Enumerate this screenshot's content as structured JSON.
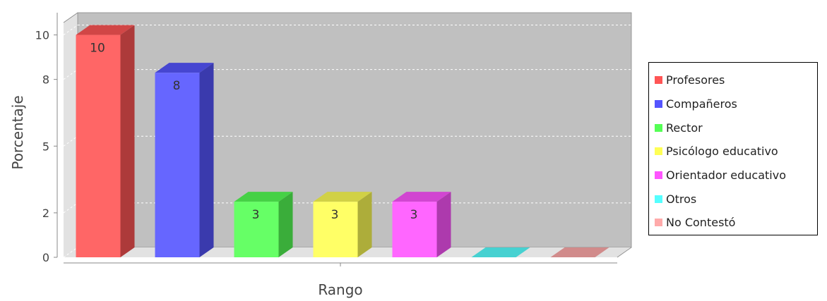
{
  "chart_data": {
    "type": "bar",
    "title": "",
    "xlabel": "Rango",
    "ylabel": "Porcentaje",
    "ylim": [
      0,
      11
    ],
    "yticks": [
      0,
      2,
      5,
      8,
      10
    ],
    "ytick_labels": [
      "0",
      "2",
      "5",
      "8",
      "10"
    ],
    "grid": true,
    "legend_position": "right",
    "categories": [
      "Profesores",
      "Compañeros",
      "Rector",
      "Psicólogo educativo",
      "Orientador educativo",
      "Otros",
      "No Contestó"
    ],
    "values": [
      10,
      8.3,
      2.5,
      2.5,
      2.5,
      0,
      0
    ],
    "data_labels": [
      "10",
      "8",
      "3",
      "3",
      "3",
      "",
      ""
    ],
    "colors": [
      "#ff5555",
      "#5555ff",
      "#55ff55",
      "#ffff55",
      "#ff55ff",
      "#55ffff",
      "#ffaaaa"
    ]
  }
}
